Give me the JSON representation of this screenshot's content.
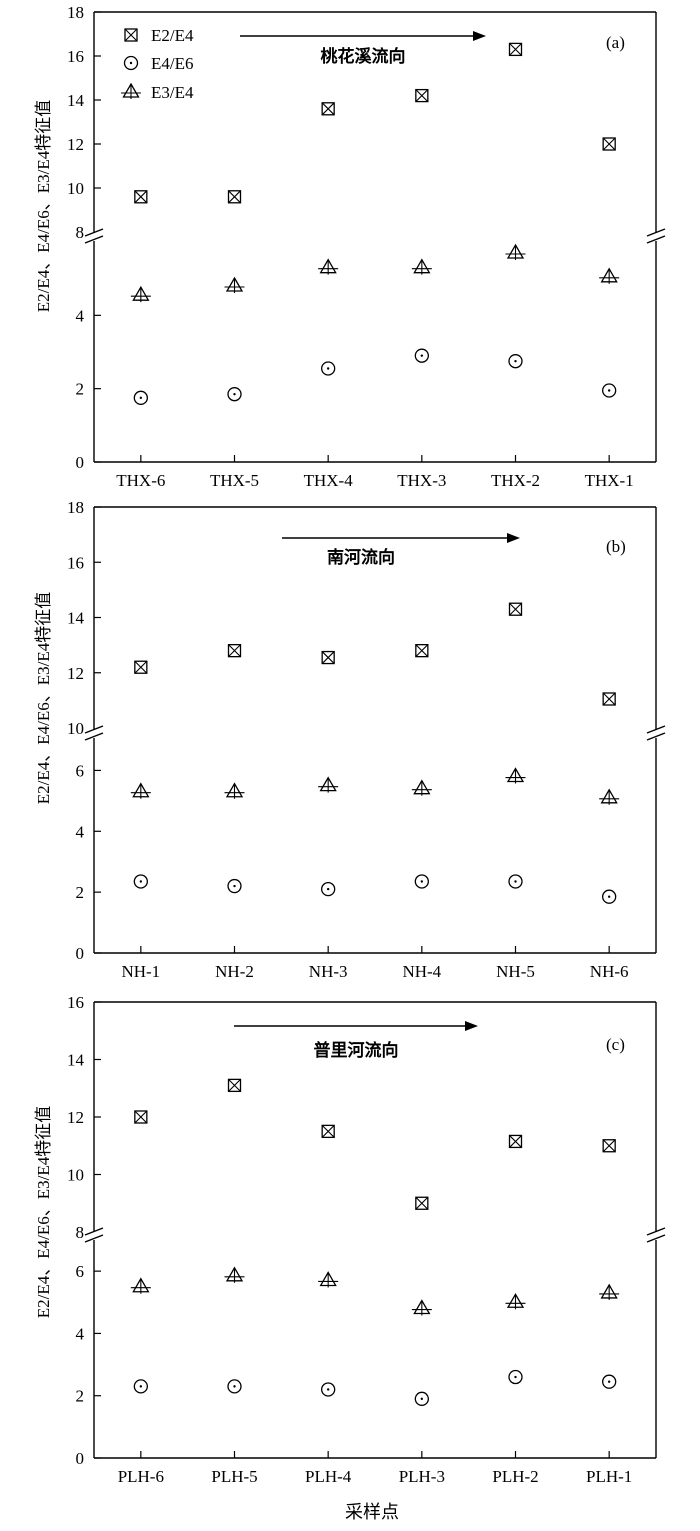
{
  "chart_data": [
    {
      "type": "scatter",
      "panel_label": "(a)",
      "annotation": "桃花溪流向",
      "ylabel": "E2/E4、E4/E6、E3/E4特征值",
      "categories": [
        "THX-6",
        "THX-5",
        "THX-4",
        "THX-3",
        "THX-2",
        "THX-1"
      ],
      "y_lower_ticks": [
        "0",
        "2",
        "4"
      ],
      "y_upper_ticks": [
        "8",
        "10",
        "12",
        "14",
        "16",
        "18"
      ],
      "y_lower_range": [
        0,
        6
      ],
      "y_upper_range": [
        8,
        18
      ],
      "series": [
        {
          "name": "E2/E4",
          "marker": "square-x",
          "values": [
            9.6,
            9.6,
            13.6,
            14.2,
            16.3,
            12.0
          ]
        },
        {
          "name": "E4/E6",
          "marker": "circle-dot",
          "values": [
            1.75,
            1.85,
            2.55,
            2.9,
            2.75,
            1.95
          ]
        },
        {
          "name": "E3/E4",
          "marker": "triangle-plus",
          "values": [
            4.55,
            4.8,
            5.3,
            5.3,
            5.7,
            5.05
          ]
        }
      ],
      "legend": "top-left"
    },
    {
      "type": "scatter",
      "panel_label": "(b)",
      "annotation": "南河流向",
      "ylabel": "E2/E4、E4/E6、E3/E4特征值",
      "categories": [
        "NH-1",
        "NH-2",
        "NH-3",
        "NH-4",
        "NH-5",
        "NH-6"
      ],
      "y_lower_ticks": [
        "0",
        "2",
        "4",
        "6"
      ],
      "y_upper_ticks": [
        "10",
        "12",
        "14",
        "16",
        "18"
      ],
      "y_lower_range": [
        0,
        7
      ],
      "y_upper_range": [
        10,
        18
      ],
      "series": [
        {
          "name": "E2/E4",
          "marker": "square-x",
          "values": [
            12.2,
            12.8,
            12.55,
            12.8,
            14.3,
            11.05
          ]
        },
        {
          "name": "E4/E6",
          "marker": "circle-dot",
          "values": [
            2.35,
            2.2,
            2.1,
            2.35,
            2.35,
            1.85
          ]
        },
        {
          "name": "E3/E4",
          "marker": "triangle-plus",
          "values": [
            5.3,
            5.3,
            5.5,
            5.4,
            5.8,
            5.1
          ]
        }
      ]
    },
    {
      "type": "scatter",
      "panel_label": "(c)",
      "annotation": "普里河流向",
      "ylabel": "E2/E4、E4/E6、E3/E4特征值",
      "xlabel": "采样点",
      "categories": [
        "PLH-6",
        "PLH-5",
        "PLH-4",
        "PLH-3",
        "PLH-2",
        "PLH-1"
      ],
      "y_lower_ticks": [
        "0",
        "2",
        "4",
        "6"
      ],
      "y_upper_ticks": [
        "8",
        "10",
        "12",
        "14",
        "16"
      ],
      "y_lower_range": [
        0,
        7
      ],
      "y_upper_range": [
        8,
        16
      ],
      "series": [
        {
          "name": "E2/E4",
          "marker": "square-x",
          "values": [
            12.0,
            13.1,
            11.5,
            9.0,
            11.15,
            11.0
          ]
        },
        {
          "name": "E4/E6",
          "marker": "circle-dot",
          "values": [
            2.3,
            2.3,
            2.2,
            1.9,
            2.6,
            2.45
          ]
        },
        {
          "name": "E3/E4",
          "marker": "triangle-plus",
          "values": [
            5.5,
            5.85,
            5.7,
            4.8,
            5.0,
            5.3
          ]
        }
      ]
    }
  ]
}
